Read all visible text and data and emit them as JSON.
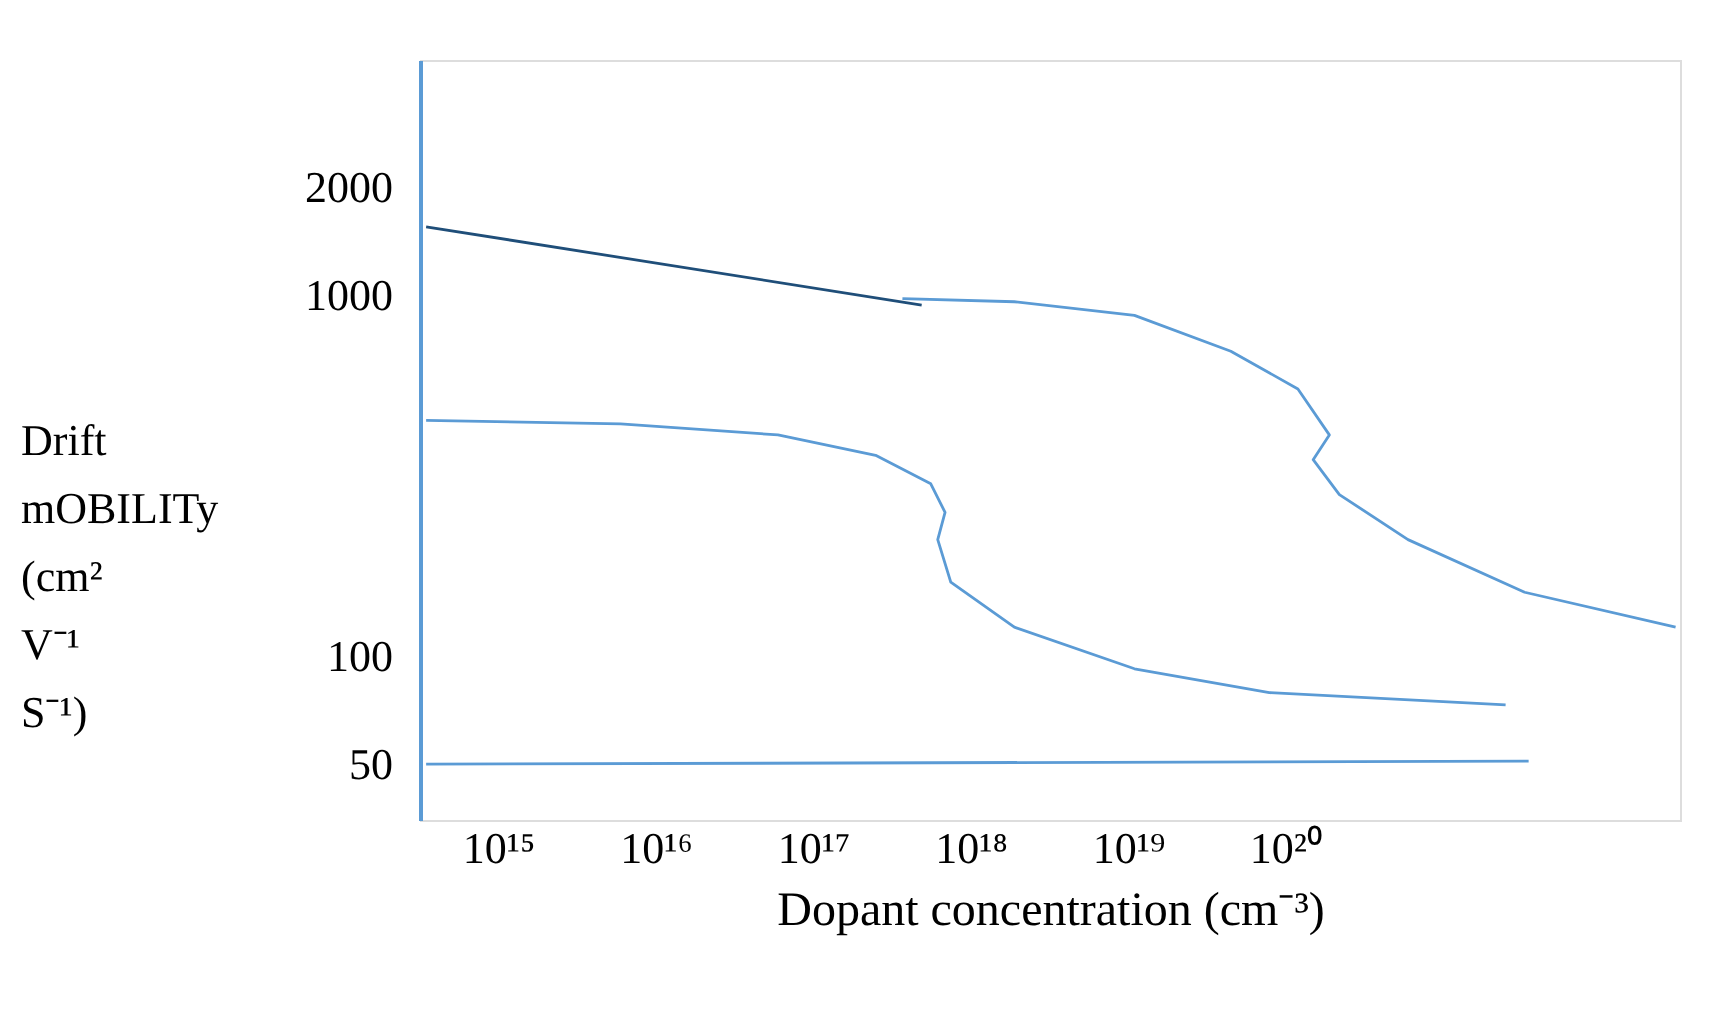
{
  "chart_data": {
    "type": "line",
    "xlabel": "Dopant concentration (cm⁻³)",
    "ylabel": "Drift mOBILITy (cm² V⁻¹ S⁻¹)",
    "log": "xy",
    "grid": false,
    "legend": false,
    "marker": "none",
    "line_style": "solid",
    "xlim": [
      320000000000000.0,
      3.2e+22
    ],
    "ylim": [
      35,
      4500
    ],
    "xticks": [
      {
        "value": 1000000000000000.0,
        "label": "10¹⁵"
      },
      {
        "value": 1e+16,
        "label": "10¹⁶"
      },
      {
        "value": 1e+17,
        "label": "10¹⁷"
      },
      {
        "value": 1e+18,
        "label": "10¹⁸"
      },
      {
        "value": 1e+19,
        "label": "10¹⁹"
      },
      {
        "value": 1e+20,
        "label": "10²⁰"
      }
    ],
    "yticks": [
      50,
      100,
      1000,
      2000
    ],
    "series": [
      {
        "color": "#1f4e79",
        "x": [
          350000000000000.0,
          4.9e+17
        ],
        "values": [
          1550,
          940
        ]
      },
      {
        "color": "#5b9bd5",
        "x": [
          3.7e+17,
          1.9e+18,
          1.1e+19,
          4.5e+19,
          1.2e+20,
          1.9e+20,
          1.5e+20,
          2.2e+20,
          6e+20,
          3.3e+21,
          3e+22
        ],
        "values": [
          980,
          960,
          880,
          700,
          550,
          410,
          350,
          280,
          210,
          150,
          120
        ]
      },
      {
        "color": "#5b9bd5",
        "x": [
          350000000000000.0,
          6000000000000000.0,
          6e+16,
          2.5e+17,
          5.6e+17,
          6.9e+17,
          6.2e+17,
          7.5e+17,
          1.9e+18,
          1.1e+19,
          7.9e+19,
          2.5e+21
        ],
        "values": [
          450,
          440,
          410,
          360,
          300,
          250,
          210,
          160,
          120,
          92,
          79,
          73
        ]
      },
      {
        "color": "#5b9bd5",
        "x": [
          350000000000000.0,
          3.5e+21
        ],
        "values": [
          50,
          51
        ]
      }
    ]
  }
}
